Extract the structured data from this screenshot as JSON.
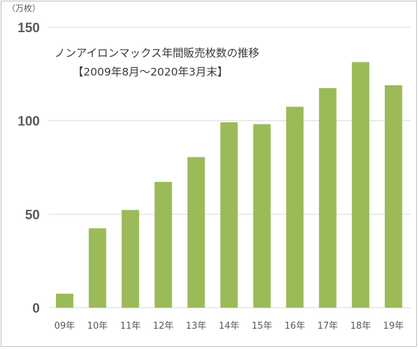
{
  "chart_data": {
    "type": "bar",
    "title": "ノンアイロンマックス年間販売枚数の推移",
    "subtitle": "【2009年8月～2020年3月末】",
    "unit_label": "（万枚）",
    "categories": [
      "09年",
      "10年",
      "11年",
      "12年",
      "13年",
      "14年",
      "15年",
      "16年",
      "17年",
      "18年",
      "19年"
    ],
    "values": [
      7.5,
      42.5,
      52.3,
      67.3,
      80.6,
      99.2,
      98.2,
      107.5,
      117.5,
      131.4,
      119.0
    ],
    "ylim": [
      0,
      150
    ],
    "yticks": [
      "0",
      "50",
      "100",
      "150"
    ],
    "grid": true,
    "legend": "none",
    "bar_color": "#9bbb59",
    "grid_color": "#d9d9d9"
  }
}
